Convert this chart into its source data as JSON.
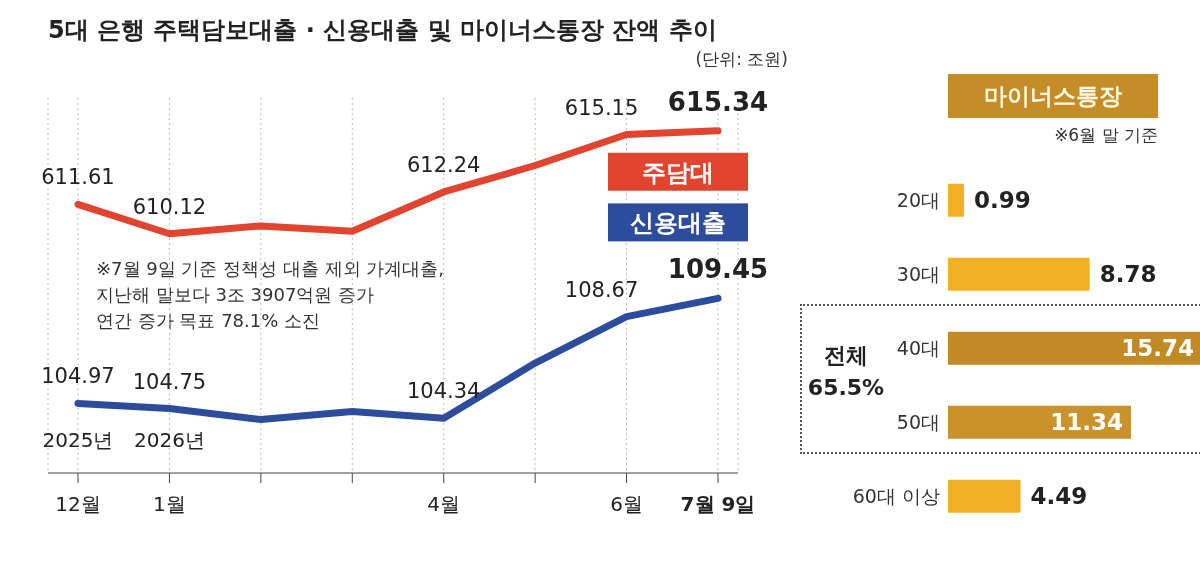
{
  "chart_data": [
    {
      "type": "line",
      "title": "5대 은행 주택담보대출 · 신용대출 및 마이너스통장 잔액 추이",
      "subtitle": "(단위: 조원)",
      "categories": [
        "2025년\n12월",
        "2026년\n1월",
        null,
        null,
        "4월",
        null,
        "6월",
        "7월 9일"
      ],
      "series": [
        {
          "name": "주담대",
          "color": "#e2452f",
          "values": [
            611.61,
            610.12,
            610.52,
            610.25,
            612.24,
            613.58,
            615.15,
            615.34
          ],
          "value_labels": [
            "611.61",
            "610.12",
            null,
            null,
            "612.24",
            null,
            "615.15",
            "615.34"
          ]
        },
        {
          "name": "신용대출",
          "color": "#2d4c9c",
          "axis": "y2",
          "values": [
            104.97,
            104.75,
            104.28,
            104.62,
            104.34,
            106.69,
            108.67,
            109.45
          ],
          "value_labels": [
            "104.97",
            "104.75",
            null,
            null,
            "104.34",
            null,
            "108.67",
            "109.45"
          ]
        }
      ],
      "ylim": [
        598,
        617
      ],
      "y2lim": [
        102,
        118
      ],
      "tick_labels": "x",
      "legend": false,
      "grid": "x",
      "annotations": [
        "※7월 9일 기준 정책성 대출 제외 가계대출,\n지난해 말보다 3조 3907억원 증가\n연간 증가 목표 78.1% 소진"
      ]
    },
    {
      "type": "bar",
      "orientation": "horizontal",
      "title": "마이너스통장",
      "subtitle": "※6월 말 기준",
      "categories": [
        "20대",
        "30대",
        "40대",
        "50대",
        "60대 이상"
      ],
      "values": [
        0.99,
        8.78,
        15.74,
        11.34,
        4.49
      ],
      "colors": [
        "#f2b124",
        "#f2b124",
        "#c28a25",
        "#c9922a",
        "#f2b124"
      ],
      "tick_labels": "y",
      "data_labels": true,
      "annotations": [
        "전체\n65.5%"
      ]
    }
  ]
}
